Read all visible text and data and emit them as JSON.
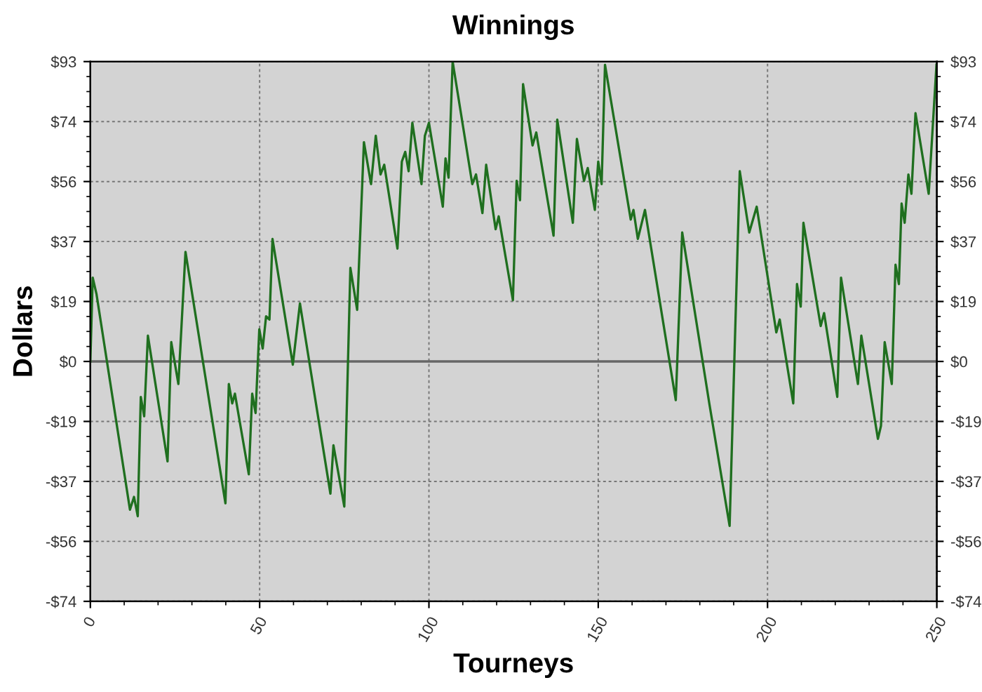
{
  "chart_data": {
    "type": "line",
    "title": "Winnings",
    "xlabel": "Tourneys",
    "ylabel": "Dollars",
    "series": [
      {
        "color": "#1f6f1f",
        "x": [
          0,
          0.7,
          1.8,
          11.7,
          12.9,
          14.0,
          14.9,
          15.9,
          17.0,
          22.8,
          23.9,
          26.0,
          28.1,
          39.9,
          40.9,
          41.9,
          42.7,
          46.8,
          47.8,
          48.8,
          49.9,
          50.9,
          51.9,
          52.9,
          53.8,
          59.8,
          61.9,
          70.9,
          71.8,
          75.0,
          76.8,
          78.8,
          80.8,
          82.9,
          84.3,
          85.7,
          86.8,
          90.7,
          92.0,
          93.0,
          94.0,
          95.1,
          97.8,
          98.8,
          100.0,
          104.1,
          104.9,
          105.8,
          107.0,
          112.8,
          113.9,
          115.8,
          116.9,
          119.7,
          120.6,
          124.8,
          125.9,
          126.9,
          127.8,
          130.6,
          131.7,
          136.8,
          137.9,
          142.5,
          143.7,
          145.8,
          146.9,
          149.0,
          150.0,
          151.0,
          152.0,
          159.6,
          160.4,
          161.7,
          163.8,
          172.9,
          174.8,
          182.8,
          188.8,
          191.8,
          194.6,
          196.8,
          202.6,
          203.6,
          207.6,
          208.7,
          209.8,
          210.6,
          215.7,
          216.7,
          220.6,
          221.7,
          226.7,
          227.7,
          232.6,
          233.5,
          234.6,
          236.7,
          237.8,
          238.8,
          239.6,
          240.5,
          241.6,
          242.5,
          243.7,
          247.6,
          249.9
        ],
        "values": [
          0,
          26,
          21,
          -46,
          -42,
          -48,
          -11,
          -17,
          8,
          -31,
          6,
          -7,
          34,
          -44,
          -7,
          -13,
          -10,
          -35,
          -10,
          -16,
          10,
          4,
          14,
          13,
          38,
          -1,
          18,
          -41,
          -26,
          -45,
          29,
          16,
          68,
          55,
          70,
          58,
          61,
          35,
          62,
          65,
          59,
          74,
          55,
          70,
          74,
          48,
          63,
          57,
          93,
          55,
          58,
          46,
          61,
          41,
          45,
          19,
          56,
          50,
          86,
          67,
          71,
          39,
          75,
          43,
          69,
          56,
          60,
          47,
          62,
          55,
          92,
          44,
          47,
          38,
          47,
          -12,
          40,
          -13,
          -51,
          59,
          40,
          48,
          9,
          13,
          -13,
          24,
          17,
          43,
          11,
          15,
          -11,
          26,
          -7,
          8,
          -24,
          -20,
          6,
          -7,
          30,
          24,
          49,
          43,
          58,
          52,
          77,
          52,
          92
        ]
      }
    ],
    "xlim": [
      0,
      250
    ],
    "xticks": [
      0,
      50,
      100,
      150,
      200,
      250
    ],
    "ylim": [
      -74.4,
      93
    ],
    "yticks": [
      {
        "value": -74.4,
        "label": "-$74"
      },
      {
        "value": -55.8,
        "label": "-$56"
      },
      {
        "value": -37.2,
        "label": "-$37"
      },
      {
        "value": -18.6,
        "label": "-$19"
      },
      {
        "value": 0,
        "label": "$0"
      },
      {
        "value": 18.6,
        "label": "$19"
      },
      {
        "value": 37.2,
        "label": "$37"
      },
      {
        "value": 55.8,
        "label": "$56"
      },
      {
        "value": 74.4,
        "label": "$74"
      },
      {
        "value": 93,
        "label": "$93"
      }
    ],
    "y2lim": [
      -74.4,
      93
    ],
    "y2ticks": [
      {
        "value": -74.4,
        "label": "-$74"
      },
      {
        "value": -55.8,
        "label": "-$56"
      },
      {
        "value": -37.2,
        "label": "-$37"
      },
      {
        "value": -18.6,
        "label": "-$19"
      },
      {
        "value": 0,
        "label": "$0"
      },
      {
        "value": 18.6,
        "label": "$19"
      },
      {
        "value": 37.2,
        "label": "$37"
      },
      {
        "value": 55.8,
        "label": "$56"
      },
      {
        "value": 74.4,
        "label": "$74"
      },
      {
        "value": 93,
        "label": "$93"
      }
    ],
    "ref_lines": [
      {
        "axis": "y",
        "value": 0,
        "color": "#666666"
      }
    ],
    "grid": true,
    "marker": "none",
    "line_style": "solid"
  }
}
